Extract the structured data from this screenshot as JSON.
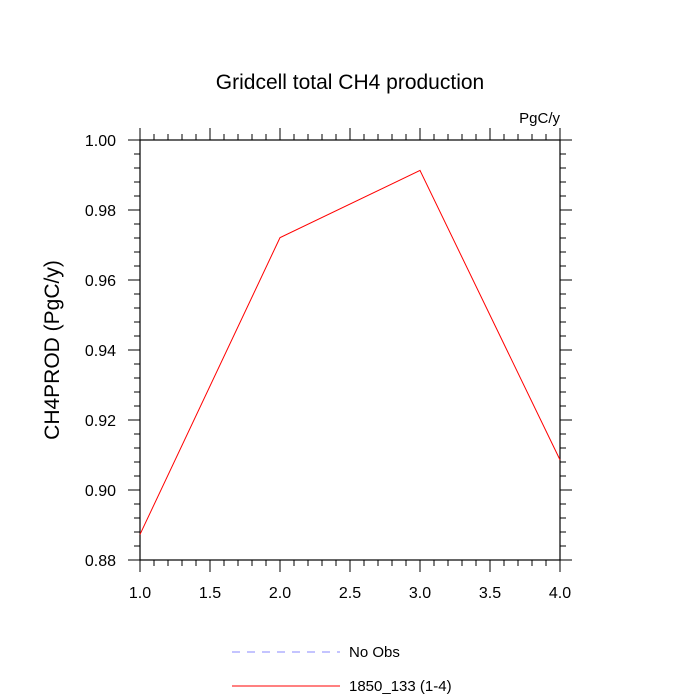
{
  "chart_data": {
    "type": "line",
    "title": "Gridcell total CH4 production",
    "units_label": "PgC/y",
    "xlabel": "",
    "ylabel": "CH4PROD  (PgC/y)",
    "xlim": [
      1.0,
      4.0
    ],
    "ylim": [
      0.88,
      1.0
    ],
    "x_ticks": [
      "1.0",
      "1.5",
      "2.0",
      "2.5",
      "3.0",
      "3.5",
      "4.0"
    ],
    "y_ticks": [
      "0.88",
      "0.90",
      "0.92",
      "0.94",
      "0.96",
      "0.98",
      "1.00"
    ],
    "grid": false,
    "legend_position": "bottom",
    "series": [
      {
        "name": "1850_133 (1-4)",
        "color": "#ff0000",
        "line_style": "solid",
        "x": [
          1.0,
          2.0,
          3.0,
          4.0
        ],
        "y": [
          0.8873,
          0.9721,
          0.9913,
          0.9086
        ]
      }
    ],
    "legend": [
      {
        "label": "No Obs",
        "color": "#8888ff",
        "line_style": "dashed"
      },
      {
        "label": "1850_133 (1-4)",
        "color": "#ff0000",
        "line_style": "solid"
      }
    ]
  }
}
